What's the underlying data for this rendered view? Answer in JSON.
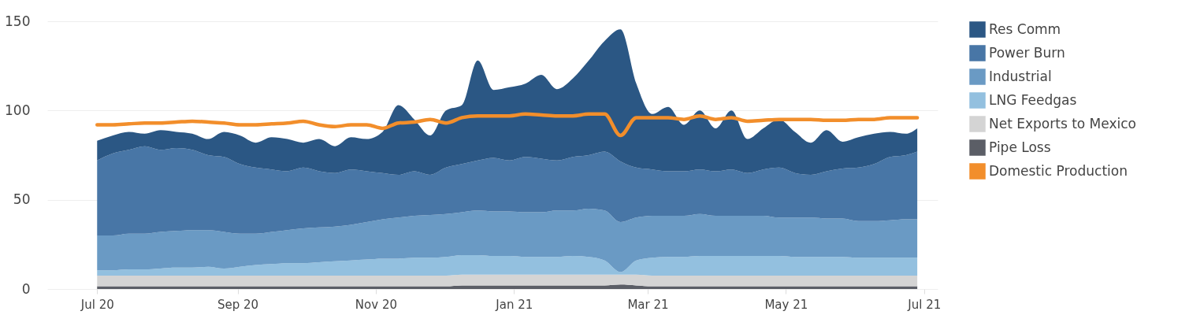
{
  "chart_data": {
    "type": "area",
    "stacked": true,
    "grid": "y",
    "legend": "right",
    "x": [
      "2020-07-01",
      "2020-07-08",
      "2020-07-15",
      "2020-07-22",
      "2020-07-29",
      "2020-08-05",
      "2020-08-12",
      "2020-08-19",
      "2020-08-26",
      "2020-09-02",
      "2020-09-09",
      "2020-09-16",
      "2020-09-23",
      "2020-09-30",
      "2020-10-07",
      "2020-10-14",
      "2020-10-21",
      "2020-10-28",
      "2020-11-04",
      "2020-11-11",
      "2020-11-18",
      "2020-11-25",
      "2020-12-02",
      "2020-12-09",
      "2020-12-16",
      "2020-12-23",
      "2020-12-30",
      "2021-01-06",
      "2021-01-13",
      "2021-01-20",
      "2021-01-27",
      "2021-02-03",
      "2021-02-10",
      "2021-02-17",
      "2021-02-24",
      "2021-03-03",
      "2021-03-10",
      "2021-03-17",
      "2021-03-24",
      "2021-03-31",
      "2021-04-07",
      "2021-04-14",
      "2021-04-21",
      "2021-04-28",
      "2021-05-05",
      "2021-05-12",
      "2021-05-19",
      "2021-05-26",
      "2021-06-02",
      "2021-06-09",
      "2021-06-16",
      "2021-06-23",
      "2021-06-28"
    ],
    "xlim": [
      "2020-06-09",
      "2021-07-07"
    ],
    "xticks": [
      {
        "value": "2020-07-01",
        "label": "Jul 20"
      },
      {
        "value": "2020-09-01",
        "label": "Sep 20"
      },
      {
        "value": "2020-11-01",
        "label": "Nov 20"
      },
      {
        "value": "2021-01-01",
        "label": "Jan 21"
      },
      {
        "value": "2021-03-01",
        "label": "Mar 21"
      },
      {
        "value": "2021-05-01",
        "label": "May 21"
      },
      {
        "value": "2021-07-01",
        "label": "Jul 21"
      }
    ],
    "ylim": [
      0,
      150
    ],
    "yticks": [
      0,
      50,
      100,
      150
    ],
    "series": [
      {
        "name": "Pipe Loss",
        "color": "#5b5e66",
        "values": [
          1.5,
          1.5,
          1.5,
          1.5,
          1.5,
          1.5,
          1.5,
          1.5,
          1.5,
          1.5,
          1.5,
          1.5,
          1.5,
          1.5,
          1.5,
          1.5,
          1.5,
          1.5,
          1.5,
          1.5,
          1.5,
          1.5,
          1.5,
          2,
          2,
          2,
          2,
          2,
          2,
          2,
          2,
          2,
          2,
          2.5,
          2,
          1.5,
          1.5,
          1.5,
          1.5,
          1.5,
          1.5,
          1.5,
          1.5,
          1.5,
          1.5,
          1.5,
          1.5,
          1.5,
          1.5,
          1.5,
          1.5,
          1.5,
          1.5
        ]
      },
      {
        "name": "Net Exports to Mexico",
        "color": "#d4d4d4",
        "values": [
          6,
          6,
          6,
          6,
          6,
          6,
          6,
          6,
          6,
          6,
          6,
          6,
          6,
          6,
          6,
          6,
          6,
          6,
          6,
          6,
          6,
          6,
          6,
          6,
          6,
          6,
          6,
          6,
          6,
          6,
          6,
          6,
          6,
          5.5,
          6,
          6,
          6,
          6,
          6,
          6,
          6,
          6,
          6,
          6,
          6,
          6,
          6,
          6,
          6,
          6,
          6,
          6,
          6
        ]
      },
      {
        "name": "LNG Feedgas",
        "color": "#93c0df",
        "values": [
          3,
          3,
          3.5,
          3.5,
          4,
          4.5,
          4.5,
          5,
          4,
          5,
          6,
          6.5,
          7,
          7,
          7.5,
          8,
          8.5,
          9,
          9.5,
          9.5,
          10,
          10,
          10.5,
          11,
          11,
          10.5,
          10.5,
          10,
          10,
          10,
          10.5,
          10,
          8,
          1.5,
          8,
          10,
          10.5,
          10.5,
          11,
          11,
          11,
          11,
          11,
          11,
          10.5,
          10.5,
          10.5,
          10.5,
          10,
          10,
          10,
          10,
          10
        ]
      },
      {
        "name": "Industrial",
        "color": "#6a9ac4",
        "values": [
          19.5,
          19.5,
          20,
          20,
          20.5,
          20.5,
          21,
          20.5,
          20.5,
          18.5,
          17.5,
          18,
          18.5,
          19.5,
          19.5,
          19.5,
          20,
          21,
          22,
          23,
          23.5,
          24,
          24,
          24,
          25,
          25,
          25,
          25,
          25,
          26,
          25.5,
          27,
          28,
          28,
          24,
          23.5,
          23,
          23,
          23.5,
          22.5,
          22.5,
          22.5,
          22.5,
          21.5,
          22,
          22,
          21.5,
          21.5,
          20.5,
          20.5,
          21,
          21.5,
          21.5
        ]
      },
      {
        "name": "Power Burn",
        "color": "#4876a6",
        "values": [
          42,
          46,
          47,
          49,
          46,
          46.5,
          45,
          42,
          42,
          39,
          37,
          35,
          33,
          34,
          31.5,
          30,
          31,
          28.5,
          26,
          24,
          25,
          22.5,
          26,
          27,
          28,
          30,
          28.5,
          31,
          30,
          28,
          30,
          30,
          33,
          34,
          28,
          26,
          25,
          25,
          25,
          25,
          26,
          24,
          26,
          28,
          25,
          24,
          26.5,
          28,
          30,
          32,
          35.5,
          36,
          38
        ]
      },
      {
        "name": "Res Comm",
        "color": "#2b5784",
        "values": [
          11,
          10,
          10,
          7,
          11,
          9,
          9,
          9,
          14,
          16,
          14,
          18,
          18,
          14,
          18,
          15,
          18,
          18,
          23,
          39,
          29,
          22,
          32,
          33,
          56,
          38,
          41,
          41,
          47,
          40,
          44,
          53,
          62,
          74,
          47,
          31,
          36,
          26,
          33,
          24,
          33,
          19,
          23,
          27,
          23,
          18,
          23,
          15,
          17,
          17,
          14,
          12,
          13
        ]
      },
      {
        "name": "Domestic Production",
        "type": "line",
        "color": "#f28e2b",
        "values": [
          92,
          92,
          92.5,
          93,
          93,
          93.5,
          94,
          93.5,
          93,
          92,
          92,
          92.5,
          93,
          94,
          92,
          91,
          92,
          92,
          90,
          93,
          93.5,
          95,
          93,
          96,
          97,
          97,
          97,
          98,
          97.5,
          97,
          97,
          98,
          98,
          86,
          96,
          96,
          96,
          95,
          97,
          95,
          96,
          94,
          94.5,
          95,
          95,
          95,
          94.5,
          94.5,
          95,
          95,
          96,
          96,
          96
        ]
      }
    ]
  }
}
